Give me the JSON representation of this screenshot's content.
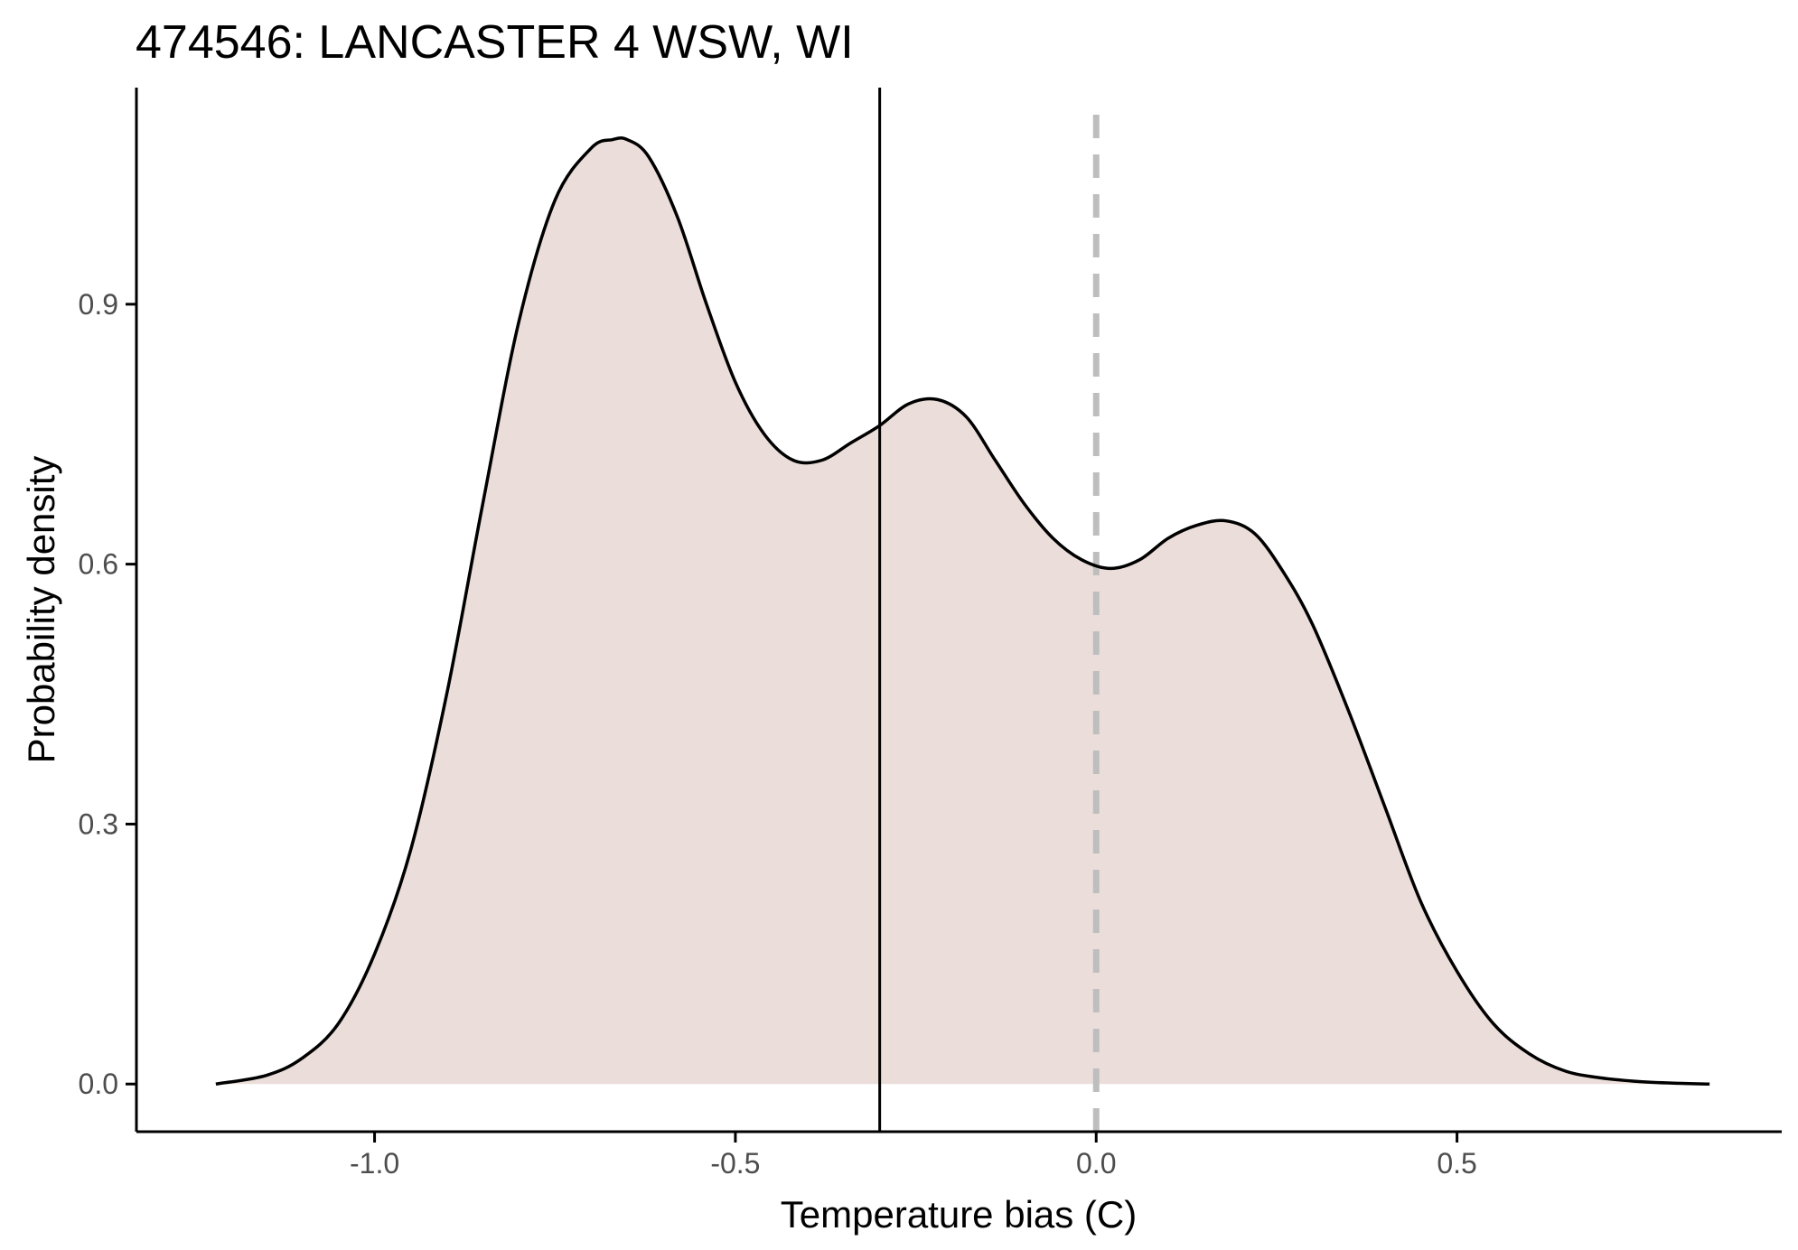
{
  "chart_data": {
    "type": "area",
    "title": "474546: LANCASTER 4 WSW, WI",
    "xlabel": "Temperature bias (C)",
    "ylabel": "Probability density",
    "xlim": [
      -1.33,
      0.95
    ],
    "ylim": [
      -0.055,
      1.15
    ],
    "x_ticks": [
      -1.0,
      -0.5,
      0.0,
      0.5
    ],
    "x_tick_labels": [
      "-1.0",
      "-0.5",
      "0.0",
      "0.5"
    ],
    "y_ticks": [
      0.0,
      0.3,
      0.6,
      0.9
    ],
    "y_tick_labels": [
      "0.0",
      "0.3",
      "0.6",
      "0.9"
    ],
    "grid": false,
    "legend": "none",
    "fill_color": "#ebdeda",
    "line_color": "#000000",
    "series": [
      {
        "x": [
          -1.22,
          -1.15,
          -1.1,
          -1.05,
          -1.0,
          -0.95,
          -0.9,
          -0.85,
          -0.8,
          -0.75,
          -0.7,
          -0.67,
          -0.65,
          -0.62,
          -0.58,
          -0.54,
          -0.5,
          -0.46,
          -0.42,
          -0.38,
          -0.34,
          -0.3,
          -0.26,
          -0.22,
          -0.18,
          -0.14,
          -0.1,
          -0.06,
          -0.02,
          0.02,
          0.06,
          0.1,
          0.14,
          0.18,
          0.22,
          0.26,
          0.3,
          0.35,
          0.4,
          0.45,
          0.5,
          0.55,
          0.6,
          0.65,
          0.7,
          0.75,
          0.8,
          0.85
        ],
        "y": [
          0.0,
          0.01,
          0.03,
          0.07,
          0.15,
          0.27,
          0.45,
          0.67,
          0.88,
          1.02,
          1.08,
          1.09,
          1.09,
          1.07,
          1.0,
          0.9,
          0.81,
          0.75,
          0.72,
          0.72,
          0.74,
          0.76,
          0.785,
          0.79,
          0.77,
          0.72,
          0.67,
          0.63,
          0.605,
          0.595,
          0.605,
          0.63,
          0.645,
          0.65,
          0.635,
          0.59,
          0.53,
          0.43,
          0.32,
          0.21,
          0.13,
          0.07,
          0.035,
          0.015,
          0.007,
          0.003,
          0.001,
          0.0
        ]
      }
    ],
    "reference_lines": [
      {
        "value": -0.3,
        "style": "solid",
        "color": "#000000"
      },
      {
        "value": 0.0,
        "style": "dashed",
        "color": "#bebebe"
      }
    ]
  }
}
